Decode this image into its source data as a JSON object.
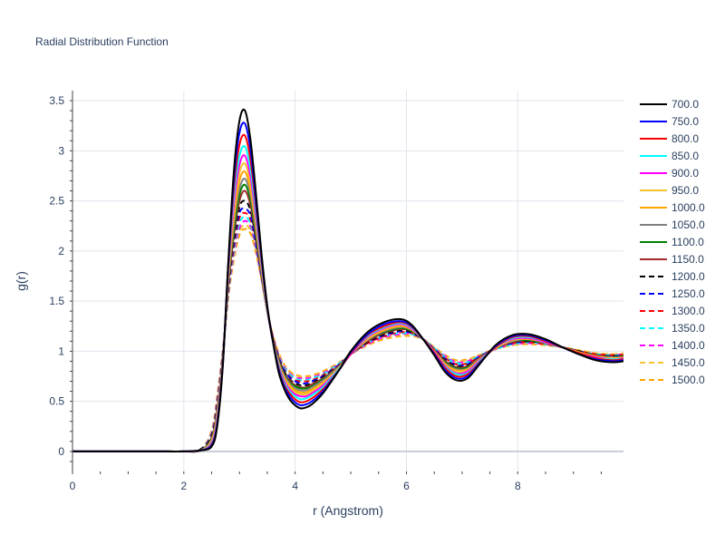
{
  "chart_data": {
    "type": "line",
    "title": "Radial Distribution Function",
    "xlabel": "r (Angstrom)",
    "ylabel": "g(r)",
    "xlim": [
      0,
      9.9
    ],
    "ylim": [
      -0.2,
      3.6
    ],
    "xticks": [
      "0",
      "2",
      "4",
      "6",
      "8"
    ],
    "yticks": [
      "0",
      "0.5",
      "1",
      "1.5",
      "2",
      "2.5",
      "3",
      "3.5"
    ],
    "grid": true,
    "legend_position": "right",
    "x": [
      0,
      0.5,
      1.0,
      1.5,
      2.0,
      2.3,
      2.5,
      2.6,
      2.7,
      2.8,
      2.9,
      3.0,
      3.1,
      3.2,
      3.3,
      3.4,
      3.5,
      3.6,
      3.7,
      3.8,
      3.9,
      4.0,
      4.1,
      4.2,
      4.3,
      4.5,
      4.8,
      5.0,
      5.3,
      5.6,
      5.9,
      6.1,
      6.3,
      6.5,
      6.7,
      6.9,
      7.1,
      7.3,
      7.6,
      7.9,
      8.2,
      8.5,
      8.8,
      9.1,
      9.4,
      9.7,
      9.9
    ],
    "series": [
      {
        "name": "700.0",
        "color": "#000000",
        "dash": "solid",
        "values": [
          0,
          0,
          0,
          0,
          0,
          0.01,
          0.05,
          0.25,
          0.85,
          1.9,
          2.8,
          3.3,
          3.4,
          3.1,
          2.55,
          1.95,
          1.45,
          1.1,
          0.8,
          0.63,
          0.52,
          0.46,
          0.43,
          0.44,
          0.47,
          0.58,
          0.82,
          1.0,
          1.19,
          1.29,
          1.32,
          1.26,
          1.12,
          0.96,
          0.79,
          0.71,
          0.73,
          0.86,
          1.06,
          1.16,
          1.17,
          1.12,
          1.04,
          0.97,
          0.91,
          0.89,
          0.9
        ]
      },
      {
        "name": "750.0",
        "color": "#0000ff",
        "dash": "solid",
        "values": [
          0,
          0,
          0,
          0,
          0,
          0.01,
          0.06,
          0.27,
          0.86,
          1.88,
          2.72,
          3.18,
          3.27,
          3.0,
          2.48,
          1.92,
          1.44,
          1.1,
          0.82,
          0.65,
          0.55,
          0.49,
          0.46,
          0.47,
          0.5,
          0.6,
          0.82,
          0.99,
          1.17,
          1.27,
          1.3,
          1.25,
          1.12,
          0.97,
          0.81,
          0.73,
          0.75,
          0.87,
          1.05,
          1.15,
          1.16,
          1.11,
          1.04,
          0.97,
          0.92,
          0.9,
          0.91
        ]
      },
      {
        "name": "800.0",
        "color": "#ff0000",
        "dash": "solid",
        "values": [
          0,
          0,
          0,
          0,
          0,
          0.01,
          0.07,
          0.29,
          0.87,
          1.85,
          2.63,
          3.06,
          3.15,
          2.9,
          2.42,
          1.89,
          1.43,
          1.1,
          0.84,
          0.67,
          0.58,
          0.52,
          0.49,
          0.5,
          0.53,
          0.62,
          0.82,
          0.98,
          1.16,
          1.25,
          1.29,
          1.24,
          1.12,
          0.98,
          0.83,
          0.75,
          0.77,
          0.88,
          1.04,
          1.14,
          1.15,
          1.1,
          1.04,
          0.98,
          0.93,
          0.91,
          0.92
        ]
      },
      {
        "name": "850.0",
        "color": "#00ffff",
        "dash": "solid",
        "values": [
          0,
          0,
          0,
          0,
          0,
          0.01,
          0.08,
          0.31,
          0.88,
          1.82,
          2.55,
          2.95,
          3.04,
          2.81,
          2.36,
          1.86,
          1.42,
          1.1,
          0.86,
          0.69,
          0.6,
          0.55,
          0.52,
          0.53,
          0.56,
          0.64,
          0.83,
          0.98,
          1.15,
          1.24,
          1.28,
          1.23,
          1.12,
          0.98,
          0.84,
          0.77,
          0.78,
          0.89,
          1.04,
          1.13,
          1.14,
          1.1,
          1.04,
          0.98,
          0.93,
          0.92,
          0.92
        ]
      },
      {
        "name": "900.0",
        "color": "#ff00ff",
        "dash": "solid",
        "values": [
          0,
          0,
          0,
          0,
          0,
          0.01,
          0.09,
          0.33,
          0.89,
          1.79,
          2.47,
          2.86,
          2.95,
          2.73,
          2.31,
          1.84,
          1.42,
          1.1,
          0.87,
          0.71,
          0.62,
          0.57,
          0.55,
          0.55,
          0.58,
          0.66,
          0.83,
          0.97,
          1.14,
          1.23,
          1.27,
          1.22,
          1.12,
          0.99,
          0.85,
          0.78,
          0.8,
          0.9,
          1.04,
          1.12,
          1.13,
          1.09,
          1.04,
          0.98,
          0.94,
          0.92,
          0.93
        ]
      },
      {
        "name": "950.0",
        "color": "#f4c430",
        "dash": "solid",
        "values": [
          0,
          0,
          0,
          0,
          0,
          0.01,
          0.1,
          0.35,
          0.9,
          1.76,
          2.4,
          2.78,
          2.87,
          2.66,
          2.27,
          1.82,
          1.41,
          1.11,
          0.88,
          0.73,
          0.64,
          0.59,
          0.57,
          0.57,
          0.6,
          0.68,
          0.84,
          0.97,
          1.13,
          1.22,
          1.26,
          1.22,
          1.12,
          0.99,
          0.86,
          0.8,
          0.81,
          0.9,
          1.03,
          1.11,
          1.13,
          1.09,
          1.04,
          0.98,
          0.94,
          0.93,
          0.93
        ]
      },
      {
        "name": "1000.0",
        "color": "#ffa500",
        "dash": "solid",
        "values": [
          0,
          0,
          0,
          0,
          0,
          0.01,
          0.11,
          0.37,
          0.91,
          1.73,
          2.33,
          2.7,
          2.79,
          2.6,
          2.23,
          1.8,
          1.41,
          1.11,
          0.89,
          0.74,
          0.66,
          0.61,
          0.59,
          0.59,
          0.62,
          0.69,
          0.84,
          0.97,
          1.12,
          1.21,
          1.25,
          1.21,
          1.12,
          1.0,
          0.87,
          0.81,
          0.82,
          0.91,
          1.03,
          1.11,
          1.12,
          1.09,
          1.04,
          0.99,
          0.95,
          0.93,
          0.94
        ]
      },
      {
        "name": "1050.0",
        "color": "#808080",
        "dash": "solid",
        "values": [
          0,
          0,
          0,
          0,
          0,
          0.01,
          0.12,
          0.39,
          0.92,
          1.7,
          2.27,
          2.62,
          2.72,
          2.55,
          2.2,
          1.78,
          1.4,
          1.11,
          0.9,
          0.76,
          0.68,
          0.63,
          0.61,
          0.61,
          0.64,
          0.71,
          0.85,
          0.97,
          1.11,
          1.2,
          1.24,
          1.21,
          1.12,
          1.0,
          0.88,
          0.82,
          0.83,
          0.92,
          1.03,
          1.1,
          1.12,
          1.08,
          1.04,
          0.99,
          0.95,
          0.94,
          0.94
        ]
      },
      {
        "name": "1100.0",
        "color": "#008000",
        "dash": "solid",
        "values": [
          0,
          0,
          0,
          0,
          0,
          0.01,
          0.13,
          0.4,
          0.93,
          1.68,
          2.21,
          2.56,
          2.66,
          2.5,
          2.16,
          1.77,
          1.4,
          1.12,
          0.91,
          0.77,
          0.69,
          0.65,
          0.63,
          0.63,
          0.65,
          0.72,
          0.85,
          0.97,
          1.11,
          1.19,
          1.23,
          1.2,
          1.12,
          1.0,
          0.89,
          0.83,
          0.84,
          0.92,
          1.03,
          1.1,
          1.11,
          1.08,
          1.04,
          0.99,
          0.95,
          0.94,
          0.95
        ]
      },
      {
        "name": "1150.0",
        "color": "#a52a2a",
        "dash": "solid",
        "values": [
          0,
          0,
          0,
          0,
          0,
          0.01,
          0.14,
          0.42,
          0.94,
          1.66,
          2.16,
          2.5,
          2.6,
          2.45,
          2.13,
          1.76,
          1.4,
          1.12,
          0.92,
          0.78,
          0.71,
          0.66,
          0.64,
          0.64,
          0.67,
          0.73,
          0.86,
          0.97,
          1.1,
          1.18,
          1.22,
          1.2,
          1.12,
          1.01,
          0.9,
          0.84,
          0.85,
          0.93,
          1.03,
          1.09,
          1.11,
          1.08,
          1.04,
          0.99,
          0.96,
          0.94,
          0.95
        ]
      },
      {
        "name": "1200.0",
        "color": "#000000",
        "dash": "dashed",
        "values": [
          0,
          0,
          0,
          0,
          0,
          0.02,
          0.15,
          0.44,
          0.95,
          1.64,
          2.12,
          2.44,
          2.5,
          2.4,
          2.1,
          1.75,
          1.4,
          1.13,
          0.93,
          0.8,
          0.72,
          0.68,
          0.66,
          0.66,
          0.68,
          0.74,
          0.86,
          0.97,
          1.09,
          1.17,
          1.21,
          1.19,
          1.12,
          1.01,
          0.91,
          0.85,
          0.86,
          0.93,
          1.03,
          1.09,
          1.1,
          1.08,
          1.04,
          1.0,
          0.96,
          0.95,
          0.95
        ]
      },
      {
        "name": "1250.0",
        "color": "#0000ff",
        "dash": "dashed",
        "values": [
          0,
          0,
          0,
          0,
          0,
          0.02,
          0.16,
          0.46,
          0.96,
          1.62,
          2.08,
          2.38,
          2.42,
          2.35,
          2.07,
          1.74,
          1.4,
          1.13,
          0.94,
          0.81,
          0.74,
          0.7,
          0.68,
          0.68,
          0.7,
          0.75,
          0.87,
          0.97,
          1.09,
          1.16,
          1.2,
          1.18,
          1.12,
          1.02,
          0.92,
          0.86,
          0.87,
          0.94,
          1.03,
          1.08,
          1.1,
          1.08,
          1.04,
          1.0,
          0.96,
          0.95,
          0.96
        ]
      },
      {
        "name": "1300.0",
        "color": "#ff0000",
        "dash": "dashed",
        "values": [
          0,
          0,
          0,
          0,
          0,
          0.02,
          0.17,
          0.48,
          0.97,
          1.6,
          2.04,
          2.33,
          2.38,
          2.31,
          2.05,
          1.73,
          1.4,
          1.14,
          0.95,
          0.82,
          0.75,
          0.71,
          0.7,
          0.7,
          0.71,
          0.76,
          0.87,
          0.97,
          1.08,
          1.15,
          1.19,
          1.18,
          1.12,
          1.02,
          0.93,
          0.87,
          0.88,
          0.94,
          1.03,
          1.08,
          1.09,
          1.07,
          1.04,
          1.0,
          0.97,
          0.96,
          0.96
        ]
      },
      {
        "name": "1350.0",
        "color": "#00ffff",
        "dash": "dashed",
        "values": [
          0,
          0,
          0,
          0,
          0,
          0.02,
          0.18,
          0.5,
          0.98,
          1.58,
          2.0,
          2.28,
          2.34,
          2.27,
          2.03,
          1.72,
          1.4,
          1.14,
          0.96,
          0.84,
          0.77,
          0.73,
          0.71,
          0.71,
          0.73,
          0.77,
          0.88,
          0.97,
          1.08,
          1.15,
          1.18,
          1.17,
          1.12,
          1.03,
          0.94,
          0.88,
          0.89,
          0.95,
          1.02,
          1.07,
          1.09,
          1.07,
          1.04,
          1.0,
          0.97,
          0.96,
          0.96
        ]
      },
      {
        "name": "1400.0",
        "color": "#ff00ff",
        "dash": "dashed",
        "values": [
          0,
          0,
          0,
          0,
          0,
          0.02,
          0.19,
          0.52,
          0.99,
          1.57,
          1.97,
          2.23,
          2.3,
          2.24,
          2.01,
          1.71,
          1.4,
          1.15,
          0.97,
          0.85,
          0.78,
          0.74,
          0.73,
          0.73,
          0.74,
          0.78,
          0.88,
          0.97,
          1.07,
          1.14,
          1.17,
          1.17,
          1.12,
          1.03,
          0.95,
          0.89,
          0.9,
          0.95,
          1.02,
          1.07,
          1.08,
          1.07,
          1.04,
          1.0,
          0.97,
          0.96,
          0.97
        ]
      },
      {
        "name": "1450.0",
        "color": "#f4c430",
        "dash": "dashed",
        "values": [
          0,
          0,
          0,
          0,
          0,
          0.02,
          0.2,
          0.54,
          1.0,
          1.55,
          1.94,
          2.19,
          2.26,
          2.2,
          1.99,
          1.7,
          1.4,
          1.15,
          0.98,
          0.86,
          0.79,
          0.76,
          0.74,
          0.74,
          0.75,
          0.79,
          0.89,
          0.97,
          1.07,
          1.13,
          1.16,
          1.16,
          1.12,
          1.04,
          0.95,
          0.9,
          0.91,
          0.96,
          1.02,
          1.06,
          1.08,
          1.07,
          1.04,
          1.01,
          0.98,
          0.97,
          0.97
        ]
      },
      {
        "name": "1500.0",
        "color": "#ffa500",
        "dash": "dashed",
        "values": [
          0,
          0,
          0,
          0,
          0,
          0.02,
          0.21,
          0.56,
          1.01,
          1.54,
          1.91,
          2.16,
          2.22,
          2.17,
          1.97,
          1.7,
          1.4,
          1.16,
          0.99,
          0.87,
          0.8,
          0.77,
          0.75,
          0.75,
          0.76,
          0.8,
          0.89,
          0.97,
          1.06,
          1.12,
          1.15,
          1.15,
          1.12,
          1.04,
          0.96,
          0.91,
          0.92,
          0.96,
          1.02,
          1.06,
          1.07,
          1.06,
          1.04,
          1.01,
          0.98,
          0.97,
          0.98
        ]
      }
    ]
  }
}
